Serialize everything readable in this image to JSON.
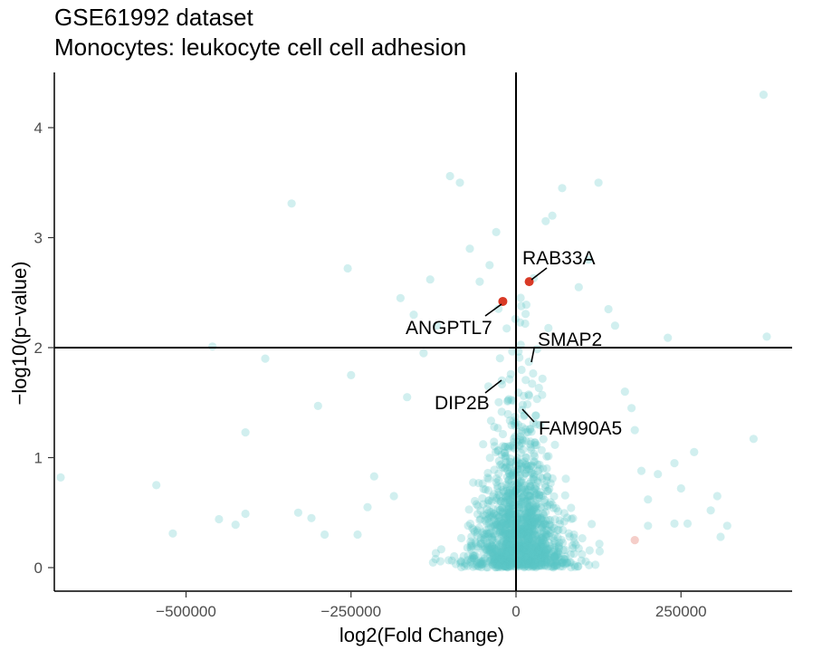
{
  "chart_data": {
    "type": "scatter",
    "title": "GSE61992 dataset",
    "subtitle": "Monocytes: leukocyte cell cell adhesion",
    "xlabel": "log2(Fold Change)",
    "ylabel": "−log10(p−value)",
    "xlim": [
      -710000,
      420000
    ],
    "ylim": [
      -0.2,
      4.5
    ],
    "x_ticks": [
      {
        "value": -500000,
        "label": "−500000"
      },
      {
        "value": -250000,
        "label": "−250000"
      },
      {
        "value": 0,
        "label": "0"
      },
      {
        "value": 250000,
        "label": "250000"
      }
    ],
    "y_ticks": [
      {
        "value": 0,
        "label": "0"
      },
      {
        "value": 1,
        "label": "1"
      },
      {
        "value": 2,
        "label": "2"
      },
      {
        "value": 3,
        "label": "3"
      },
      {
        "value": 4,
        "label": "4"
      }
    ],
    "reference_lines": {
      "vertical_x": 0,
      "horizontal_y": 2
    },
    "grid": false,
    "colors": {
      "background_points": "#5BC4C6",
      "highlight_points": "#D93A26"
    },
    "highlighted_genes": [
      {
        "gene": "RAB33A",
        "x": 20000,
        "y": 2.6
      },
      {
        "gene": "ANGPTL7",
        "x": -20000,
        "y": 2.42
      },
      {
        "gene": "SMAP2",
        "x": 22000,
        "y": 1.85
      },
      {
        "gene": "DIP2B",
        "x": -25000,
        "y": 1.72
      },
      {
        "gene": "FAM90A5",
        "x": 8000,
        "y": 1.45
      }
    ],
    "background_points_outer": [
      [
        -690000,
        0.82
      ],
      [
        -520000,
        0.31
      ],
      [
        -545000,
        0.75
      ],
      [
        -460000,
        2.01
      ],
      [
        -450000,
        0.44
      ],
      [
        -425000,
        0.39
      ],
      [
        -410000,
        0.49
      ],
      [
        -410000,
        1.23
      ],
      [
        -380000,
        1.9
      ],
      [
        -340000,
        3.31
      ],
      [
        -330000,
        0.5
      ],
      [
        -310000,
        0.45
      ],
      [
        -300000,
        1.47
      ],
      [
        -290000,
        0.3
      ],
      [
        -255000,
        2.72
      ],
      [
        -250000,
        1.75
      ],
      [
        -240000,
        0.3
      ],
      [
        -225000,
        0.55
      ],
      [
        -215000,
        0.83
      ],
      [
        -185000,
        0.65
      ],
      [
        -175000,
        2.45
      ],
      [
        -165000,
        1.55
      ],
      [
        -155000,
        2.3
      ],
      [
        -140000,
        1.95
      ],
      [
        -130000,
        2.62
      ],
      [
        -120000,
        2.2
      ],
      [
        -100000,
        3.56
      ],
      [
        -85000,
        3.5
      ],
      [
        -70000,
        2.9
      ],
      [
        -55000,
        2.6
      ],
      [
        -40000,
        2.75
      ],
      [
        -30000,
        3.05
      ],
      [
        45000,
        3.15
      ],
      [
        55000,
        3.2
      ],
      [
        70000,
        3.45
      ],
      [
        95000,
        2.55
      ],
      [
        110000,
        2.8
      ],
      [
        125000,
        3.5
      ],
      [
        140000,
        2.35
      ],
      [
        150000,
        2.2
      ],
      [
        165000,
        1.6
      ],
      [
        175000,
        1.45
      ],
      [
        180000,
        1.25
      ],
      [
        190000,
        0.88
      ],
      [
        200000,
        0.62
      ],
      [
        215000,
        0.85
      ],
      [
        230000,
        2.09
      ],
      [
        240000,
        0.95
      ],
      [
        250000,
        0.72
      ],
      [
        260000,
        0.4
      ],
      [
        270000,
        1.05
      ],
      [
        295000,
        0.52
      ],
      [
        305000,
        0.65
      ],
      [
        310000,
        0.28
      ],
      [
        320000,
        0.38
      ],
      [
        360000,
        1.17
      ],
      [
        375000,
        4.3
      ],
      [
        380000,
        2.1
      ],
      [
        200000,
        0.38
      ],
      [
        240000,
        0.4
      ]
    ]
  }
}
